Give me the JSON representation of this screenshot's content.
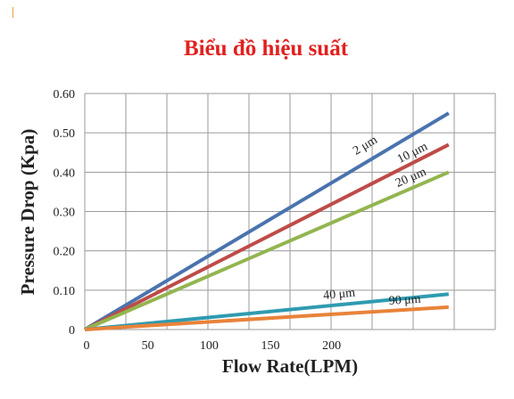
{
  "chart_data": {
    "type": "line",
    "title": "Biểu đồ hiệu suất",
    "xlabel": "Flow Rate(LPM)",
    "ylabel": "Pressure Drop (Kpa)",
    "xlim": [
      0,
      335
    ],
    "ylim": [
      0,
      0.6
    ],
    "x_ticks": [
      0,
      50,
      100,
      150,
      200
    ],
    "x_tick_labels": [
      "0",
      "50",
      "100",
      "150",
      "200"
    ],
    "y_ticks": [
      0,
      0.1,
      0.2,
      0.3,
      0.4,
      0.5,
      0.6
    ],
    "y_tick_labels": [
      "0",
      "0.10",
      "0.20",
      "0.30",
      "0.40",
      "0.50",
      "0.60"
    ],
    "x_grid": [
      0,
      33.5,
      67,
      100.5,
      134,
      167.5,
      201,
      234.5,
      268,
      301.5,
      335
    ],
    "y_grid": [
      0,
      0.1,
      0.2,
      0.3,
      0.4,
      0.5,
      0.6
    ],
    "grid": true,
    "series": [
      {
        "name": "2 μm",
        "color": "#4a73ae",
        "x": [
          0,
          297
        ],
        "y": [
          0,
          0.55
        ]
      },
      {
        "name": "10 μm",
        "color": "#be4b48",
        "x": [
          0,
          297
        ],
        "y": [
          0,
          0.47
        ]
      },
      {
        "name": "20 μm",
        "color": "#93b550",
        "x": [
          0,
          297
        ],
        "y": [
          0,
          0.4
        ]
      },
      {
        "name": "40 μm",
        "color": "#2f9bb0",
        "x": [
          0,
          297
        ],
        "y": [
          0,
          0.09
        ]
      },
      {
        "name": "90 μm",
        "color": "#e8833a",
        "x": [
          0,
          297
        ],
        "y": [
          0,
          0.057
        ]
      }
    ]
  }
}
